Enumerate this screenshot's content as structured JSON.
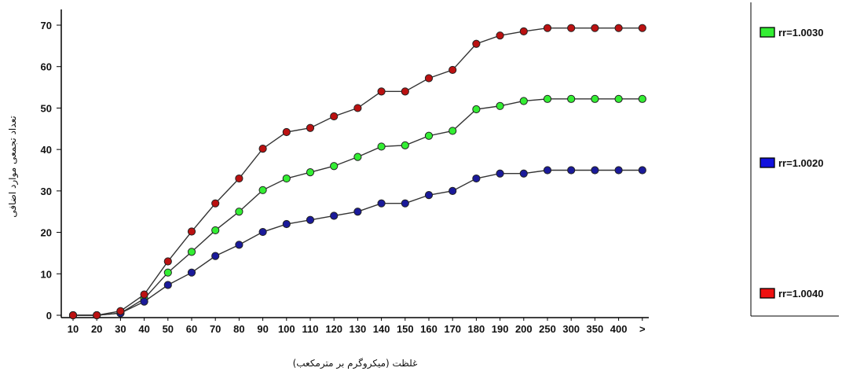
{
  "chart_data": {
    "type": "line",
    "xlabel": "غلظت (میکروگرم بر مترمکعب)",
    "ylabel": "تعداد تجمعی موارد اضافی",
    "ylim": [
      0,
      70
    ],
    "yticks": [
      0,
      10,
      20,
      30,
      40,
      50,
      60,
      70
    ],
    "grid": false,
    "legend_position": "right",
    "categories": [
      "10",
      "20",
      "30",
      "40",
      "50",
      "60",
      "70",
      "80",
      "90",
      "100",
      "110",
      "120",
      "130",
      "140",
      "150",
      "160",
      "170",
      "180",
      "190",
      "200",
      "250",
      "300",
      "350",
      "400",
      ">"
    ],
    "series": [
      {
        "name": "rr=1.0030",
        "color": "#33ee33",
        "values": [
          0,
          0,
          0.5,
          4,
          10.3,
          15.3,
          20.5,
          25,
          30.2,
          33,
          34.5,
          36,
          38.2,
          40.7,
          41,
          43.3,
          44.5,
          49.7,
          50.5,
          51.7,
          52.2,
          52.2,
          52.2,
          52.2,
          52.2
        ]
      },
      {
        "name": "rr=1.0020",
        "color": "#1a1a9a",
        "values": [
          0,
          0,
          0.5,
          3.3,
          7.3,
          10.3,
          14.3,
          17,
          20.1,
          22,
          23,
          24,
          25,
          27,
          27,
          29,
          30,
          33,
          34.2,
          34.2,
          35,
          35,
          35,
          35,
          35
        ]
      },
      {
        "name": "rr=1.0040",
        "color": "#bb1111",
        "values": [
          0,
          0,
          1,
          5,
          13,
          20.2,
          27,
          33,
          40.2,
          44.2,
          45.2,
          48,
          50,
          54,
          54,
          57.2,
          59.2,
          65.5,
          67.5,
          68.5,
          69.3,
          69.3,
          69.3,
          69.3,
          69.3
        ]
      }
    ],
    "legend": [
      {
        "label": "rr=1.0030",
        "color": "#33ee33"
      },
      {
        "label": "rr=1.0020",
        "color": "#1111dd"
      },
      {
        "label": "rr=1.0040",
        "color": "#ee1111"
      }
    ]
  }
}
